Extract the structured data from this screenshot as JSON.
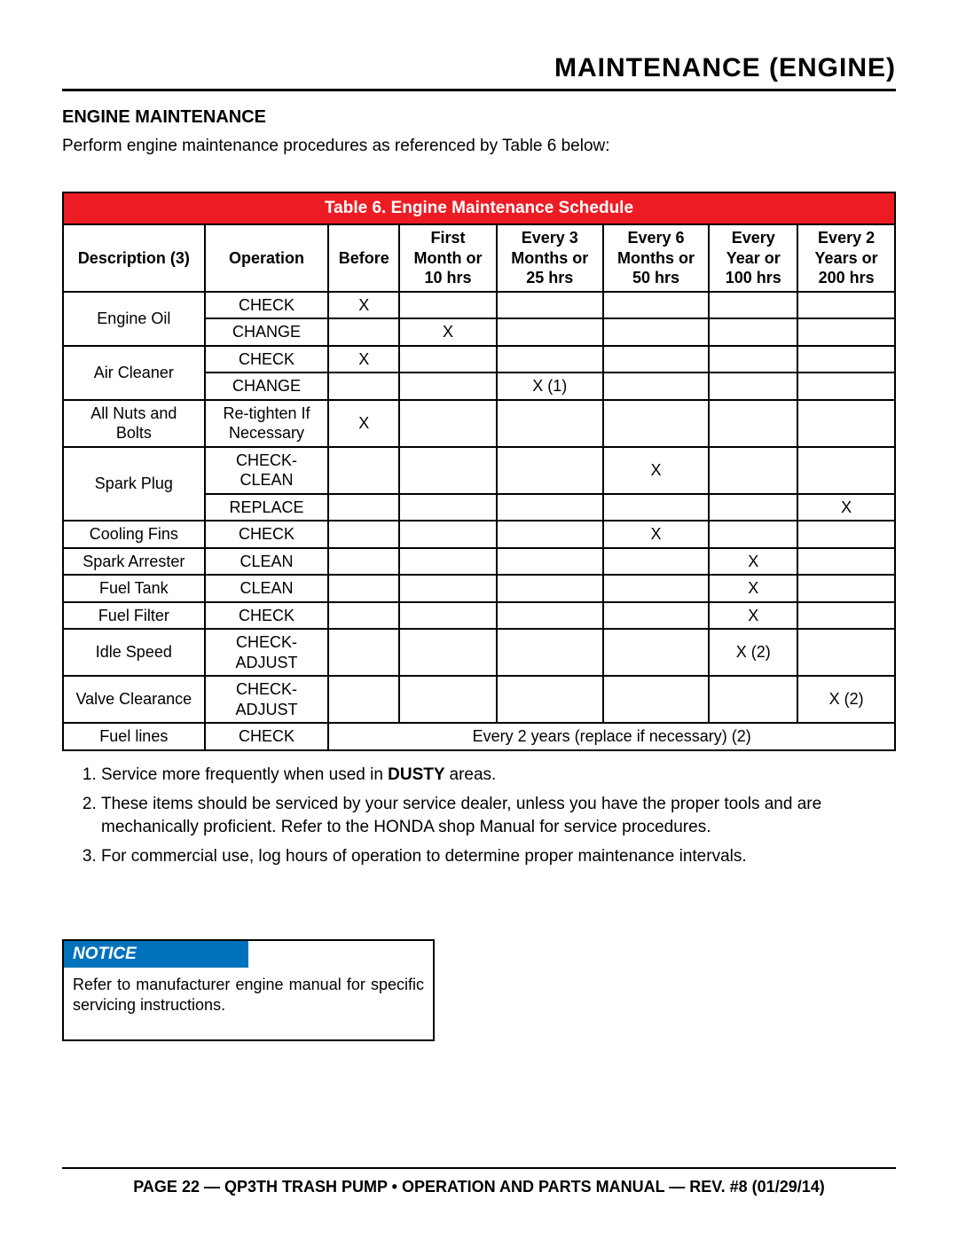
{
  "page_title": "MAINTENANCE (ENGINE)",
  "section_heading": "ENGINE MAINTENANCE",
  "intro_text": "Perform engine maintenance procedures as referenced by Table 6 below:",
  "table": {
    "caption": "Table 6. Engine Maintenance Schedule",
    "columns": [
      "Description (3)",
      "Operation",
      "Before",
      "First Month or 10 hrs",
      "Every 3 Months or 25 hrs",
      "Every 6 Months or 50 hrs",
      "Every Year or 100 hrs",
      "Every 2 Years or 200 hrs"
    ],
    "col_html": {
      "c3": "First<br>Month or<br>10 hrs",
      "c4": "Every 3<br>Months or<br>25 hrs",
      "c5": "Every 6<br>Months or<br>50 hrs",
      "c6": "Every<br>Year or<br>100 hrs",
      "c7": "Every 2<br>Years or<br>200 hrs"
    },
    "rows": [
      {
        "desc": "Engine Oil",
        "ops": [
          {
            "op": "CHECK",
            "marks": [
              "X",
              "",
              "",
              "",
              "",
              ""
            ]
          },
          {
            "op": "CHANGE",
            "marks": [
              "",
              "X",
              "",
              "",
              "",
              ""
            ]
          }
        ]
      },
      {
        "desc": "Air Cleaner",
        "ops": [
          {
            "op": "CHECK",
            "marks": [
              "X",
              "",
              "",
              "",
              "",
              ""
            ]
          },
          {
            "op": "CHANGE",
            "marks": [
              "",
              "",
              "X (1)",
              "",
              "",
              ""
            ]
          }
        ]
      },
      {
        "desc": "All Nuts and Bolts",
        "desc_html": "All Nuts and<br>Bolts",
        "ops": [
          {
            "op": "Re-tighten If Necessary",
            "op_html": "Re-tighten If<br>Necessary",
            "marks": [
              "X",
              "",
              "",
              "",
              "",
              ""
            ]
          }
        ]
      },
      {
        "desc": "Spark Plug",
        "ops": [
          {
            "op": "CHECK-CLEAN",
            "marks": [
              "",
              "",
              "",
              "X",
              "",
              ""
            ]
          },
          {
            "op": "REPLACE",
            "marks": [
              "",
              "",
              "",
              "",
              "",
              "X"
            ]
          }
        ]
      },
      {
        "desc": "Cooling Fins",
        "ops": [
          {
            "op": "CHECK",
            "marks": [
              "",
              "",
              "",
              "X",
              "",
              ""
            ]
          }
        ]
      },
      {
        "desc": "Spark Arrester",
        "ops": [
          {
            "op": "CLEAN",
            "marks": [
              "",
              "",
              "",
              "",
              "X",
              ""
            ]
          }
        ]
      },
      {
        "desc": "Fuel Tank",
        "ops": [
          {
            "op": "CLEAN",
            "marks": [
              "",
              "",
              "",
              "",
              "X",
              ""
            ]
          }
        ]
      },
      {
        "desc": "Fuel Filter",
        "ops": [
          {
            "op": "CHECK",
            "marks": [
              "",
              "",
              "",
              "",
              "X",
              ""
            ]
          }
        ]
      },
      {
        "desc": "Idle Speed",
        "ops": [
          {
            "op": "CHECK-ADJUST",
            "marks": [
              "",
              "",
              "",
              "",
              "X (2)",
              ""
            ]
          }
        ]
      },
      {
        "desc": "Valve Clearance",
        "ops": [
          {
            "op": "CHECK-ADJUST",
            "marks": [
              "",
              "",
              "",
              "",
              "",
              "X (2)"
            ]
          }
        ]
      },
      {
        "desc": "Fuel lines",
        "ops": [
          {
            "op": "CHECK",
            "span_note": "Every 2 years (replace if necessary) (2)"
          }
        ]
      }
    ]
  },
  "notes": [
    {
      "pre": "Service more frequently when used in ",
      "bold": "DUSTY ",
      "post": "areas."
    },
    {
      "text": "These items should be serviced by your service dealer, unless you have the proper tools and are mechanically proficient. Refer to the HONDA shop Manual for service procedures."
    },
    {
      "text": "For commercial use, log hours of operation to determine proper maintenance intervals."
    }
  ],
  "notice": {
    "head": "NOTICE",
    "body": "Refer to manufacturer engine manual for specific servicing instructions."
  },
  "footer": "PAGE 22 — QP3TH TRASH PUMP • OPERATION AND PARTS MANUAL — REV. #8 (01/29/14)",
  "colors": {
    "header_red": "#ed1c24",
    "notice_blue": "#0072bc",
    "text": "#000000",
    "bg": "#ffffff",
    "border": "#000000"
  },
  "fontsizes": {
    "page_title": 30,
    "section_heading": 20,
    "body": 19,
    "table": 18,
    "footer": 18
  }
}
